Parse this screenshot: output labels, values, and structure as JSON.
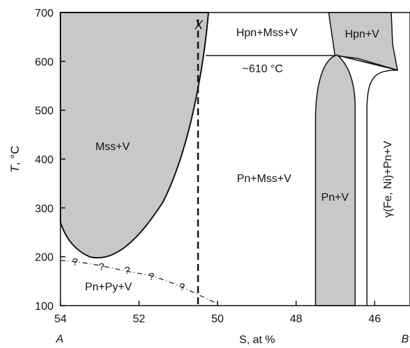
{
  "colors": {
    "region_fill": "#c8c8c8",
    "line": "#111111",
    "background": "#ffffff"
  },
  "axes": {
    "x": {
      "label": "S, at %",
      "ticks": [
        "54",
        "52",
        "50",
        "48",
        "46"
      ],
      "tick_values": [
        54,
        52,
        50,
        48,
        46
      ],
      "range": [
        54,
        45.1
      ],
      "end_labels": {
        "left": "A",
        "right": "B"
      }
    },
    "y": {
      "label_italic": "T",
      "label_rest": ", °C",
      "ticks": [
        "700",
        "600",
        "500",
        "400",
        "300",
        "200",
        "100"
      ],
      "tick_values": [
        700,
        600,
        500,
        400,
        300,
        200,
        100
      ],
      "range": [
        100,
        700
      ]
    }
  },
  "regions": {
    "mss_v": "Mss+V",
    "hpn_mss_v": "Hpn+Mss+V",
    "hpn_v": "Hpn+V",
    "pn_mss_v": "Pn+Mss+V",
    "pn_v": "Pn+V",
    "gamma": "γ(Fe, Ni)+Pn+V",
    "pn_py_v": "Pn+Py+V"
  },
  "annotations": {
    "point_x": "X",
    "temperature_610": "~610 °C",
    "uncertain_mark": "?"
  }
}
